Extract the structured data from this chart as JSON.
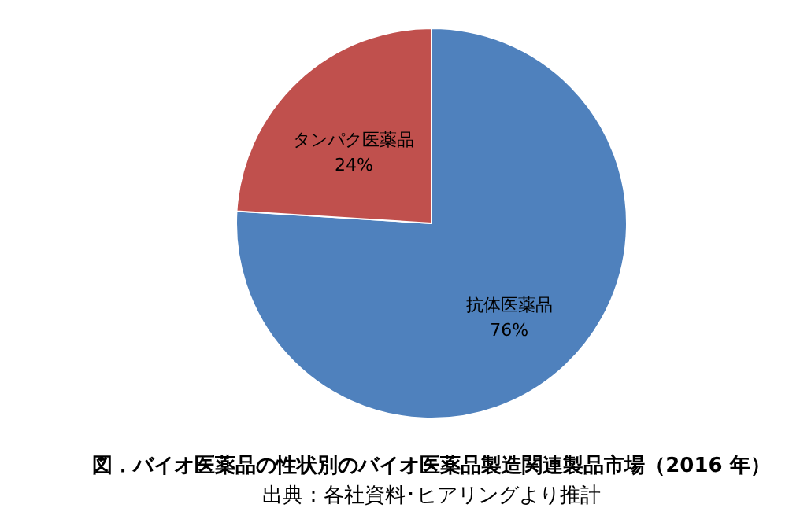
{
  "chart_data": {
    "type": "pie",
    "title": "図．バイオ医薬品の性状別のバイオ医薬品製造関連製品市場（2016 年）",
    "annotations": [
      "出典：各社資料･ヒアリングより推計"
    ],
    "categories": [
      "抗体医薬品",
      "タンパク医薬品"
    ],
    "values": [
      76,
      24
    ],
    "colors": [
      "#4f81bd",
      "#c0504d"
    ],
    "value_labels": [
      "76%",
      "24%"
    ]
  }
}
